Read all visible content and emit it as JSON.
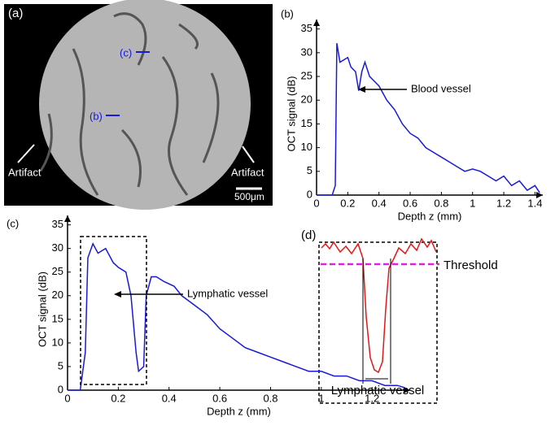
{
  "image_panel": {
    "label": "(a)",
    "markers": [
      "(c)",
      "(b)"
    ],
    "artifacts": [
      "Artifact",
      "Artifact"
    ],
    "scale_bar": "500μm"
  },
  "chart_data": [
    {
      "type": "line",
      "label": "(b)",
      "xlabel": "Depth z (mm)",
      "ylabel": "OCT signal (dB)",
      "annotation": "Blood vessel",
      "xlim": [
        0,
        1.45
      ],
      "ylim": [
        0,
        37
      ],
      "xticks": [
        0,
        0.2,
        0.4,
        0.6,
        0.8,
        1.0,
        1.2,
        1.4
      ],
      "yticks": [
        0,
        5,
        10,
        15,
        20,
        25,
        30,
        35
      ],
      "series": [
        {
          "color": "#1a1ad6",
          "x": [
            0,
            0.1,
            0.12,
            0.13,
            0.15,
            0.2,
            0.22,
            0.25,
            0.27,
            0.29,
            0.31,
            0.34,
            0.37,
            0.4,
            0.45,
            0.5,
            0.55,
            0.6,
            0.65,
            0.7,
            0.75,
            0.8,
            0.85,
            0.9,
            0.95,
            1.0,
            1.05,
            1.1,
            1.15,
            1.2,
            1.25,
            1.3,
            1.35,
            1.4,
            1.43
          ],
          "values": [
            0,
            0,
            2,
            32,
            28,
            29,
            27,
            26,
            22,
            26,
            28,
            25,
            24,
            23,
            20,
            18,
            15,
            13,
            12,
            10,
            9,
            8,
            7,
            6,
            5,
            5.5,
            5,
            4,
            3,
            4,
            2,
            3,
            1,
            2,
            0.5
          ]
        }
      ]
    },
    {
      "type": "line",
      "label": "(c)",
      "xlabel": "Depth z (mm)",
      "ylabel": "OCT signal (dB)",
      "annotation": "Lymphatic vessel",
      "xlim": [
        0,
        1.35
      ],
      "ylim": [
        0,
        37
      ],
      "xticks": [
        0,
        0.2,
        0.4,
        0.6,
        0.8,
        1.0,
        1.2
      ],
      "yticks": [
        0,
        5,
        10,
        15,
        20,
        25,
        30,
        35
      ],
      "series": [
        {
          "color": "#1a1ad6",
          "x": [
            0,
            0.05,
            0.07,
            0.08,
            0.1,
            0.12,
            0.15,
            0.18,
            0.2,
            0.23,
            0.25,
            0.27,
            0.28,
            0.3,
            0.31,
            0.33,
            0.35,
            0.38,
            0.42,
            0.45,
            0.5,
            0.55,
            0.6,
            0.65,
            0.7,
            0.75,
            0.8,
            0.85,
            0.9,
            0.95,
            1.0,
            1.05,
            1.1,
            1.15,
            1.2,
            1.25,
            1.3,
            1.33
          ],
          "values": [
            0,
            0,
            8,
            28,
            31,
            29,
            30,
            27,
            26,
            25,
            20,
            8,
            4,
            5,
            20,
            24,
            24,
            23,
            22,
            20,
            18,
            16,
            13,
            11,
            9,
            8,
            7,
            6,
            5,
            4,
            4,
            3,
            3,
            2,
            2,
            1,
            1,
            0.5
          ]
        }
      ]
    }
  ],
  "schematic_panel": {
    "label": "(d)",
    "threshold": "Threshold",
    "annotation": "Lymphatic vessel"
  }
}
